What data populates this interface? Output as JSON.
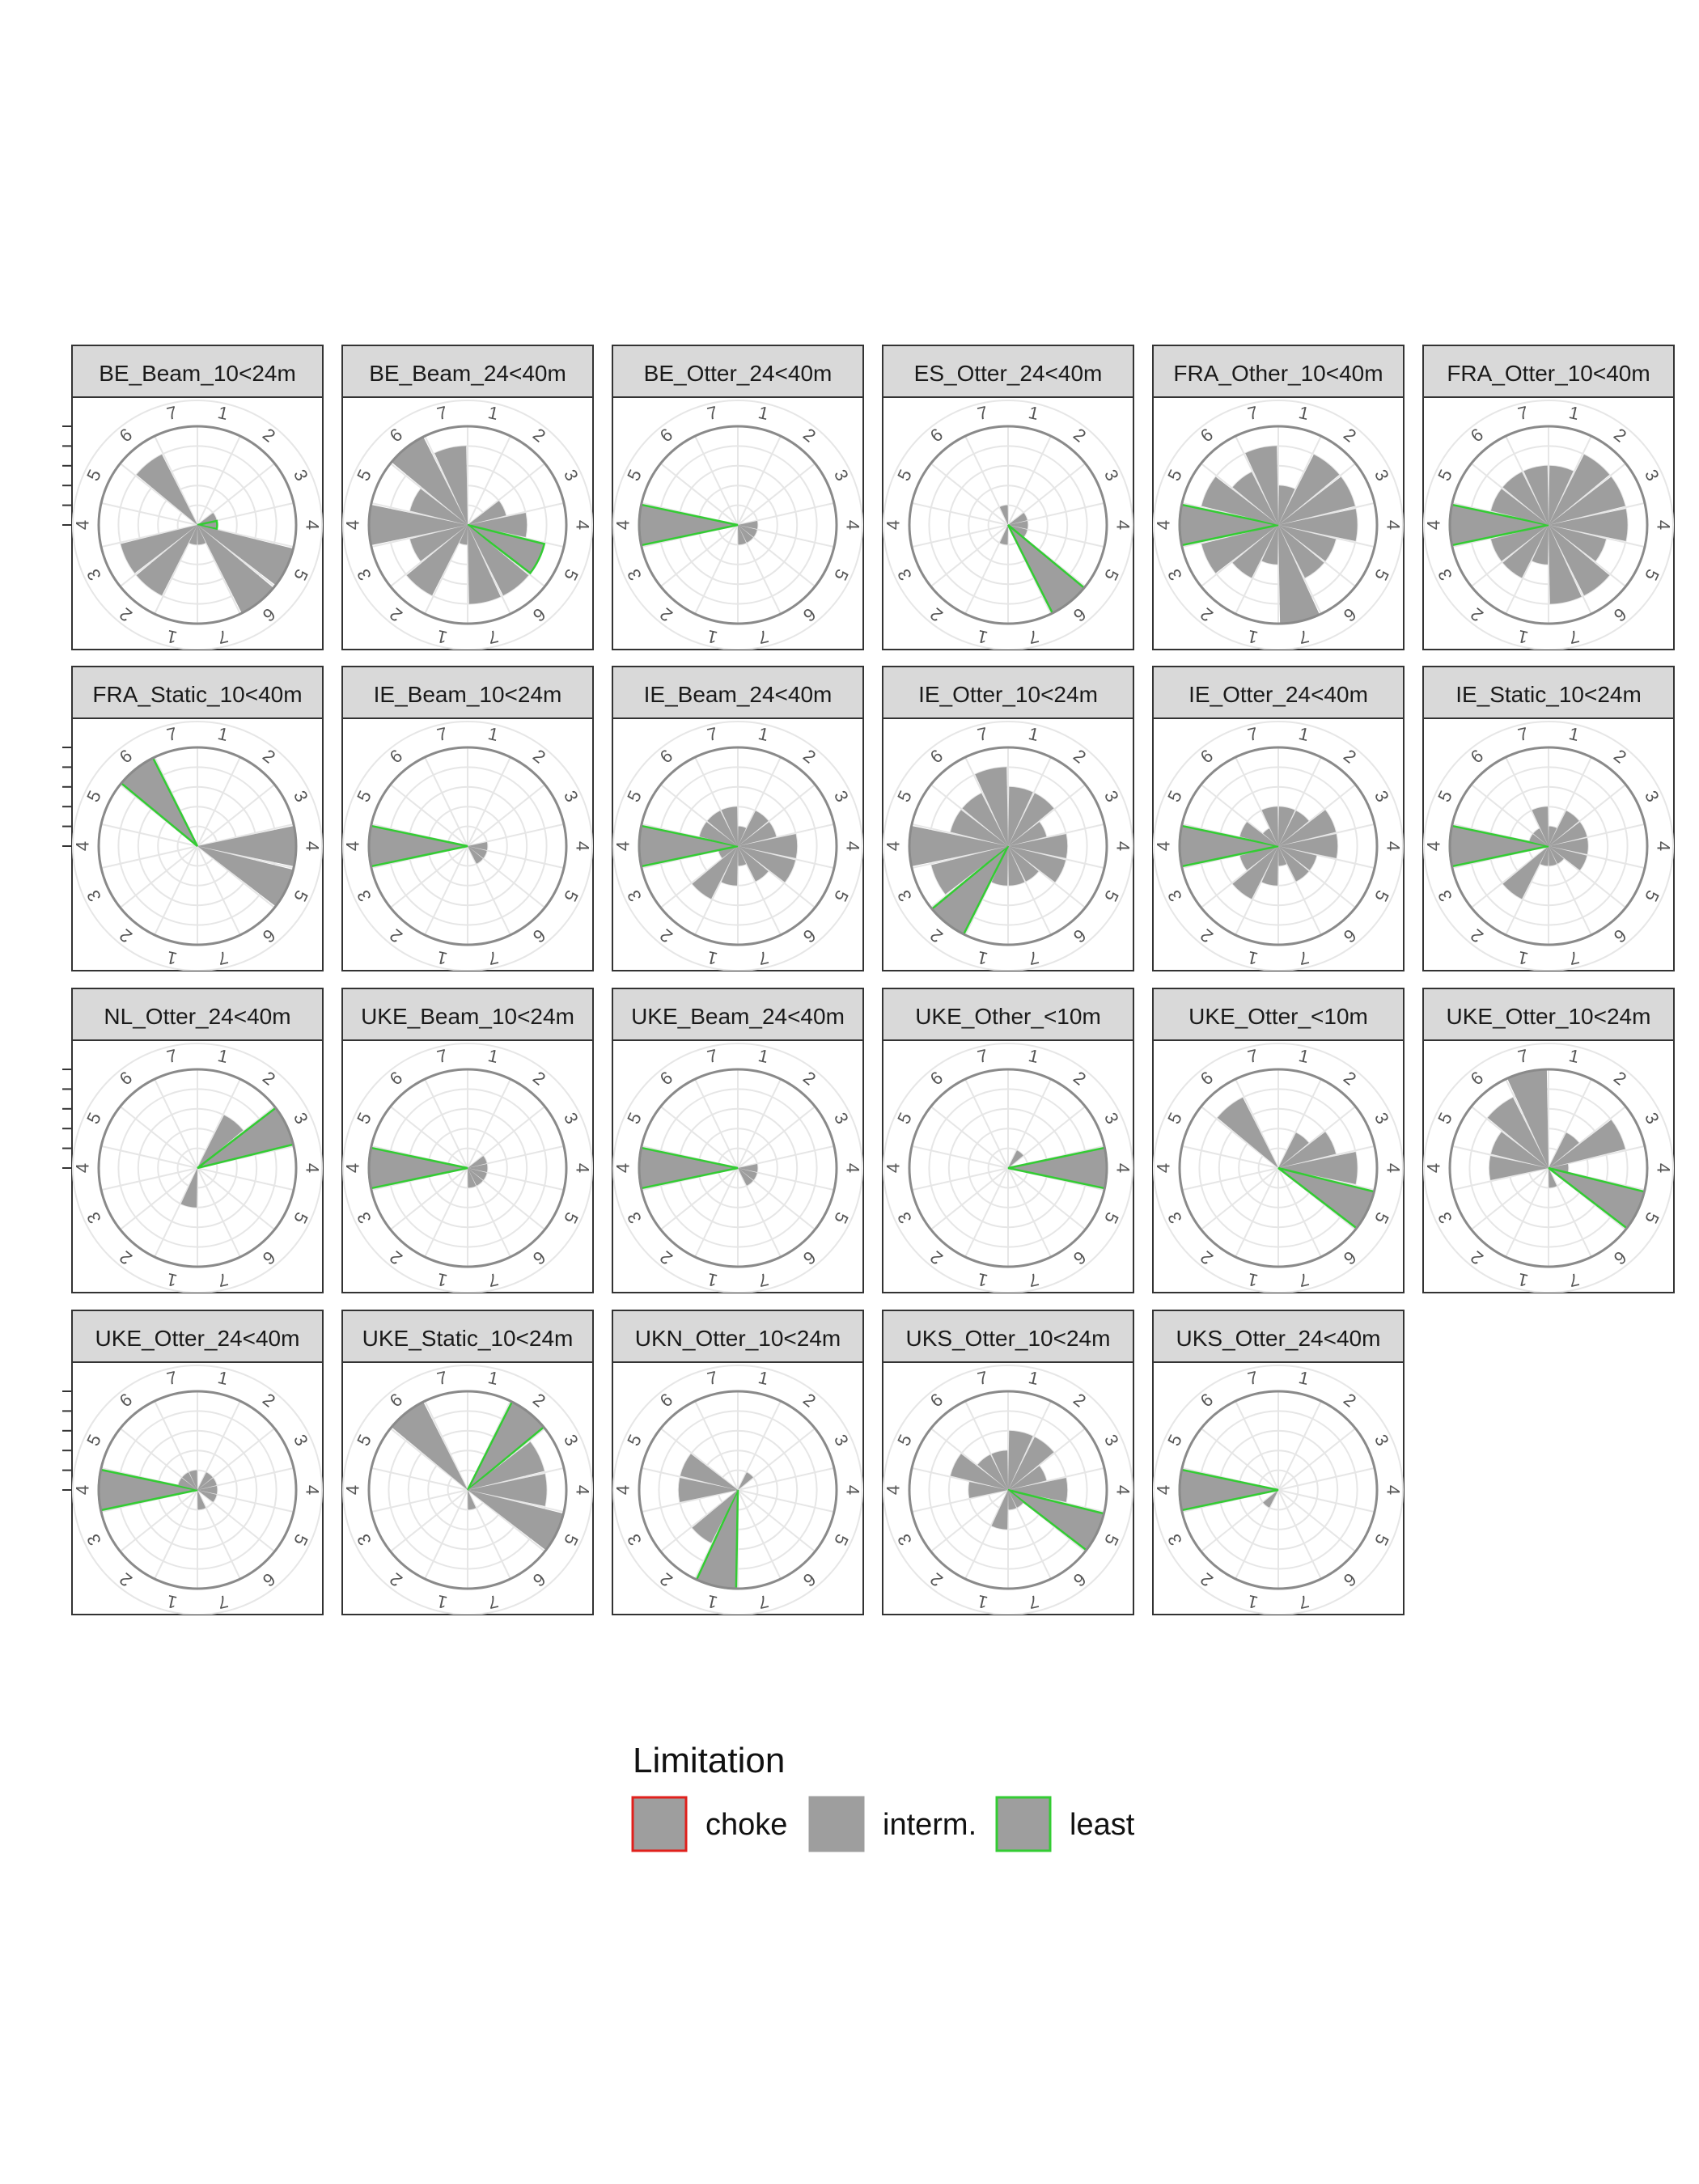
{
  "legend": {
    "title": "Limitation",
    "items": [
      {
        "label": "choke",
        "border": "#e0201c"
      },
      {
        "label": "interm.",
        "border": "#9e9e9e"
      },
      {
        "label": "least",
        "border": "#33cc33"
      }
    ]
  },
  "chart_data": {
    "type": "polar-bar",
    "angle_labels": [
      "1",
      "2",
      "3",
      "4",
      "5",
      "6",
      "7",
      "1",
      "2",
      "3",
      "4",
      "5",
      "6",
      "7"
    ],
    "ring_max": 5,
    "bar_fill": "#9e9e9e",
    "colors": {
      "choke": "#e0201c",
      "interm.": "#9e9e9e",
      "least": "#33cc33"
    },
    "panels": [
      {
        "name": "BE_Beam_10<24m",
        "values": [
          0,
          0,
          1,
          1,
          5,
          5,
          1,
          1,
          4,
          4,
          0,
          0,
          4,
          0
        ],
        "least": [
          3
        ]
      },
      {
        "name": "BE_Beam_24<40m",
        "values": [
          0,
          0,
          2,
          3,
          4,
          4,
          4,
          1,
          4,
          3,
          5,
          3,
          5,
          4
        ],
        "least": [
          4
        ]
      },
      {
        "name": "BE_Otter_24<40m",
        "values": [
          0,
          0,
          0,
          1,
          1,
          1,
          1,
          0,
          0,
          0,
          5,
          0,
          0,
          0
        ],
        "least": [
          10
        ]
      },
      {
        "name": "ES_Otter_24<40m",
        "values": [
          0,
          0,
          1,
          1,
          1,
          5,
          0,
          1,
          0,
          0,
          0,
          0,
          0,
          1
        ],
        "least": [
          5
        ]
      },
      {
        "name": "FRA_Other_10<40m",
        "values": [
          2,
          4,
          4,
          4,
          3,
          3,
          5,
          2,
          3,
          4,
          5,
          4,
          3,
          4
        ],
        "least": [
          10
        ]
      },
      {
        "name": "FRA_Otter_10<40m",
        "values": [
          3,
          4,
          4,
          4,
          3,
          4,
          4,
          2,
          3,
          3,
          5,
          3,
          3,
          3
        ],
        "least": [
          10
        ]
      },
      {
        "name": "FRA_Static_10<40m",
        "values": [
          0,
          0,
          0,
          5,
          5,
          0,
          0,
          0,
          0,
          0,
          0,
          0,
          5,
          0
        ],
        "least": [
          12
        ]
      },
      {
        "name": "IE_Beam_10<24m",
        "values": [
          0,
          0,
          0,
          1,
          1,
          1,
          0,
          0,
          0,
          0,
          5,
          0,
          0,
          0
        ],
        "least": [
          10
        ]
      },
      {
        "name": "IE_Beam_24<40m",
        "values": [
          1,
          2,
          2,
          3,
          3,
          2,
          1,
          2,
          3,
          1,
          5,
          2,
          2,
          2
        ],
        "least": [
          10
        ]
      },
      {
        "name": "IE_Otter_10<24m",
        "values": [
          3,
          3,
          2,
          3,
          3,
          2,
          2,
          2,
          5,
          4,
          5,
          3,
          3,
          4
        ],
        "least": [
          8
        ]
      },
      {
        "name": "IE_Otter_24<40m",
        "values": [
          2,
          2,
          3,
          3,
          2,
          2,
          1,
          2,
          3,
          2,
          5,
          2,
          1,
          2
        ],
        "least": [
          10
        ]
      },
      {
        "name": "IE_Static_10<24m",
        "values": [
          1,
          2,
          2,
          2,
          2,
          1,
          1,
          1,
          3,
          0,
          5,
          1,
          1,
          2
        ],
        "least": [
          10
        ]
      },
      {
        "name": "NL_Otter_24<40m",
        "values": [
          0,
          3,
          5,
          0,
          0,
          0,
          0,
          2,
          0,
          0,
          0,
          0,
          0,
          0
        ],
        "least": [
          2
        ]
      },
      {
        "name": "UKE_Beam_10<24m",
        "values": [
          0,
          0,
          1,
          1,
          1,
          1,
          1,
          0,
          0,
          0,
          5,
          0,
          0,
          0
        ],
        "least": [
          10
        ]
      },
      {
        "name": "UKE_Beam_24<40m",
        "values": [
          0,
          0,
          0,
          1,
          1,
          1,
          0,
          0,
          0,
          0,
          5,
          0,
          0,
          0
        ],
        "least": [
          10
        ]
      },
      {
        "name": "UKE_Other_<10m",
        "values": [
          0,
          1,
          0,
          5,
          0,
          0,
          0,
          0,
          0,
          0,
          0,
          0,
          0,
          0
        ],
        "least": [
          3
        ]
      },
      {
        "name": "UKE_Otter_<10m",
        "values": [
          0,
          2,
          3,
          4,
          5,
          0,
          0,
          0,
          0,
          0,
          0,
          0,
          4,
          0
        ],
        "least": [
          4
        ]
      },
      {
        "name": "UKE_Otter_10<24m",
        "values": [
          0,
          2,
          4,
          1,
          5,
          0,
          1,
          0,
          0,
          0,
          3,
          3,
          4,
          5
        ],
        "least": [
          4
        ]
      },
      {
        "name": "UKE_Otter_24<40m",
        "values": [
          0,
          1,
          1,
          1,
          1,
          0,
          1,
          0,
          0,
          0,
          5,
          1,
          1,
          1
        ],
        "least": [
          10
        ]
      },
      {
        "name": "UKE_Static_10<24m",
        "values": [
          0,
          5,
          4,
          4,
          5,
          0,
          1,
          0,
          0,
          0,
          0,
          0,
          5,
          0
        ],
        "least": [
          1
        ]
      },
      {
        "name": "UKN_Otter_10<24m",
        "values": [
          0,
          1,
          0,
          0,
          0,
          0,
          0,
          5,
          3,
          0,
          3,
          3,
          0,
          0
        ],
        "least": [
          7
        ]
      },
      {
        "name": "UKS_Otter_10<24m",
        "values": [
          3,
          3,
          2,
          3,
          5,
          1,
          1,
          2,
          0,
          0,
          2,
          3,
          2,
          2
        ],
        "least": [
          4
        ]
      },
      {
        "name": "UKS_Otter_24<40m",
        "values": [
          0,
          0,
          0,
          0,
          0,
          0,
          0,
          0,
          1,
          0,
          5,
          0,
          0,
          0
        ],
        "least": [
          10
        ]
      }
    ]
  }
}
